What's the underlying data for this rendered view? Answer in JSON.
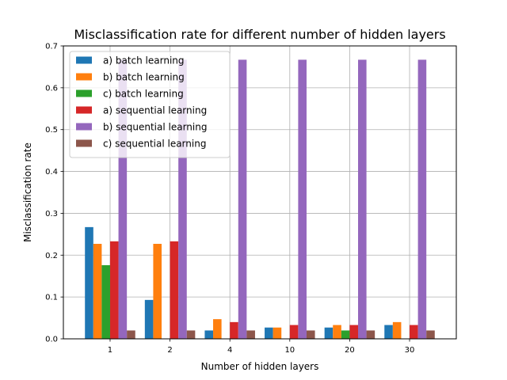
{
  "chart_data": {
    "type": "bar",
    "title": "Misclassification rate for different number of hidden layers",
    "xlabel": "Number of hidden layers",
    "ylabel": "Misclassification rate",
    "categories": [
      "1",
      "2",
      "4",
      "10",
      "20",
      "30"
    ],
    "ylim": [
      0,
      0.7
    ],
    "yticks": [
      "0.0",
      "0.1",
      "0.2",
      "0.3",
      "0.4",
      "0.5",
      "0.6",
      "0.7"
    ],
    "grid": true,
    "legend_position": "upper-left",
    "series": [
      {
        "name": "a) batch learning",
        "color": "#1f77b4",
        "values": [
          0.267,
          0.093,
          0.02,
          0.027,
          0.027,
          0.033
        ]
      },
      {
        "name": "b) batch learning",
        "color": "#ff7f0e",
        "values": [
          0.227,
          0.227,
          0.047,
          0.027,
          0.033,
          0.04
        ]
      },
      {
        "name": "c) batch learning",
        "color": "#2ca02c",
        "values": [
          0.176,
          0.0,
          0.0,
          0.0,
          0.02,
          0.0
        ]
      },
      {
        "name": "a) sequential learning",
        "color": "#d62728",
        "values": [
          0.233,
          0.233,
          0.04,
          0.033,
          0.033,
          0.033
        ]
      },
      {
        "name": "b) sequential learning",
        "color": "#9467bd",
        "values": [
          0.667,
          0.667,
          0.667,
          0.667,
          0.667,
          0.667
        ]
      },
      {
        "name": "c) sequential learning",
        "color": "#8c564b",
        "values": [
          0.02,
          0.02,
          0.02,
          0.02,
          0.02,
          0.02
        ]
      }
    ]
  }
}
